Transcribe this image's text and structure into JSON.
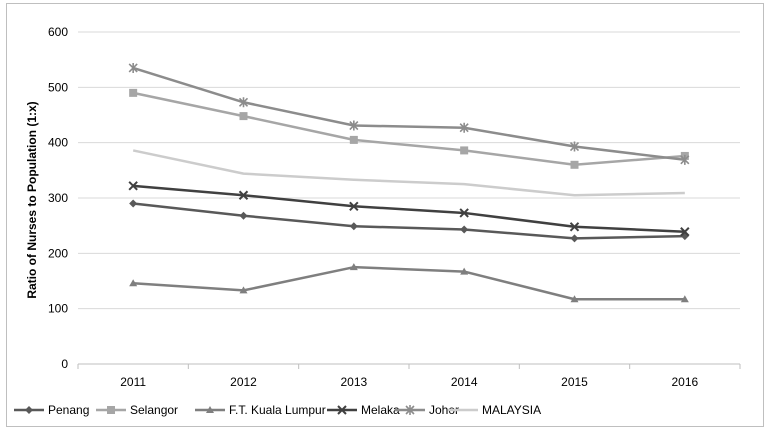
{
  "chart_data": {
    "type": "line",
    "title": "",
    "xlabel": "",
    "ylabel": "Ratio of Nurses to Population (1:x)",
    "categories": [
      "2011",
      "2012",
      "2013",
      "2014",
      "2015",
      "2016"
    ],
    "ylim": [
      0,
      600
    ],
    "yticks": [
      0,
      100,
      200,
      300,
      400,
      500,
      600
    ],
    "grid": "horizontal",
    "legend_position": "bottom",
    "series": [
      {
        "name": "Penang",
        "color": "#595959",
        "marker": "diamond",
        "values": [
          290,
          268,
          249,
          243,
          227,
          231
        ]
      },
      {
        "name": "Selangor",
        "color": "#a6a6a6",
        "marker": "square",
        "values": [
          490,
          448,
          405,
          386,
          360,
          376
        ]
      },
      {
        "name": "F.T. Kuala Lumpur",
        "color": "#7f7f7f",
        "marker": "triangle",
        "values": [
          146,
          133,
          175,
          167,
          117,
          117
        ]
      },
      {
        "name": "Melaka",
        "color": "#404040",
        "marker": "x",
        "values": [
          322,
          305,
          285,
          273,
          248,
          239
        ]
      },
      {
        "name": "Johor",
        "color": "#8c8c8c",
        "marker": "star",
        "values": [
          535,
          473,
          431,
          427,
          393,
          369
        ]
      },
      {
        "name": "MALAYSIA",
        "color": "#cccccc",
        "marker": "none",
        "values": [
          386,
          344,
          333,
          325,
          305,
          309
        ]
      }
    ]
  }
}
